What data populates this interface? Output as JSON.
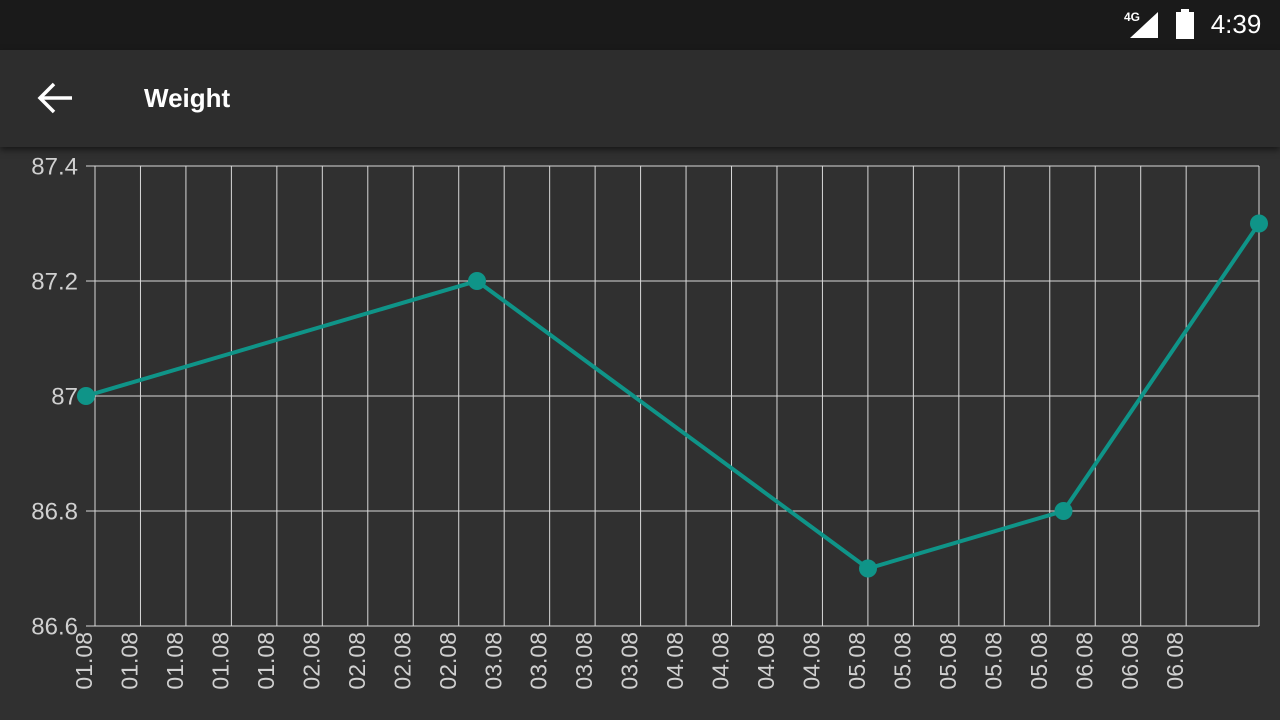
{
  "status_bar": {
    "network": "4G",
    "time": "4:39"
  },
  "app_bar": {
    "title": "Weight"
  },
  "chart_data": {
    "type": "line",
    "x": [
      0,
      8.6,
      17.2,
      21.5,
      25.8
    ],
    "series": [
      {
        "color": "#0f9488",
        "values": [
          87,
          87.2,
          86.7,
          86.8,
          87.3
        ]
      }
    ],
    "xlim": [
      0,
      25.8
    ],
    "xticks": [
      {
        "value": 0,
        "label": "01.08"
      },
      {
        "value": 1,
        "label": "01.08"
      },
      {
        "value": 2,
        "label": "01.08"
      },
      {
        "value": 3,
        "label": "01.08"
      },
      {
        "value": 4,
        "label": "01.08"
      },
      {
        "value": 5,
        "label": "02.08"
      },
      {
        "value": 6,
        "label": "02.08"
      },
      {
        "value": 7,
        "label": "02.08"
      },
      {
        "value": 8,
        "label": "02.08"
      },
      {
        "value": 9,
        "label": "03.08"
      },
      {
        "value": 10,
        "label": "03.08"
      },
      {
        "value": 11,
        "label": "03.08"
      },
      {
        "value": 12,
        "label": "03.08"
      },
      {
        "value": 13,
        "label": "04.08"
      },
      {
        "value": 14,
        "label": "04.08"
      },
      {
        "value": 15,
        "label": "04.08"
      },
      {
        "value": 16,
        "label": "04.08"
      },
      {
        "value": 17,
        "label": "05.08"
      },
      {
        "value": 18,
        "label": "05.08"
      },
      {
        "value": 19,
        "label": "05.08"
      },
      {
        "value": 20,
        "label": "05.08"
      },
      {
        "value": 21,
        "label": "05.08"
      },
      {
        "value": 22,
        "label": "06.08"
      },
      {
        "value": 23,
        "label": "06.08"
      },
      {
        "value": 24,
        "label": "06.08"
      }
    ],
    "ylim": [
      86.6,
      87.4
    ],
    "yticks": [
      86.6,
      86.8,
      87,
      87.2,
      87.4
    ],
    "grid": true
  }
}
